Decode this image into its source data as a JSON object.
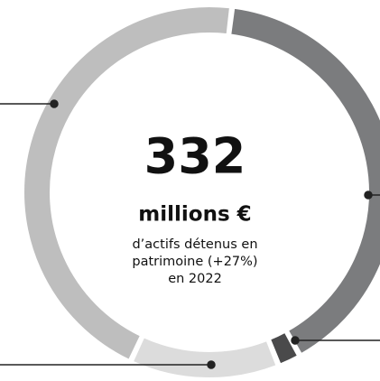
{
  "chart_data": {
    "type": "donut",
    "values": [
      40,
      2,
      13,
      45
    ],
    "colors": [
      "#7b7c7e",
      "#4a4a4b",
      "#dcdcdc",
      "#bebebe"
    ],
    "center_value": "332",
    "center_unit": "millions €",
    "center_lines": [
      "d’actifs détenus en",
      "patrimoine (+27%)",
      "en 2022"
    ]
  }
}
